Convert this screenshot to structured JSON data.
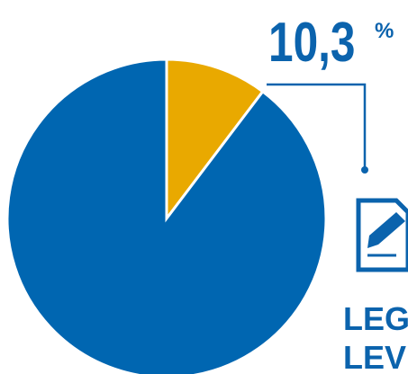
{
  "chart_data": {
    "type": "pie",
    "values": [
      10.3,
      89.7
    ],
    "value_labels": [
      "10,3",
      null
    ],
    "unit": "%",
    "colors": [
      "#e9a900",
      "#0066b1"
    ],
    "notes": [
      "LEG",
      "LEV"
    ]
  }
}
